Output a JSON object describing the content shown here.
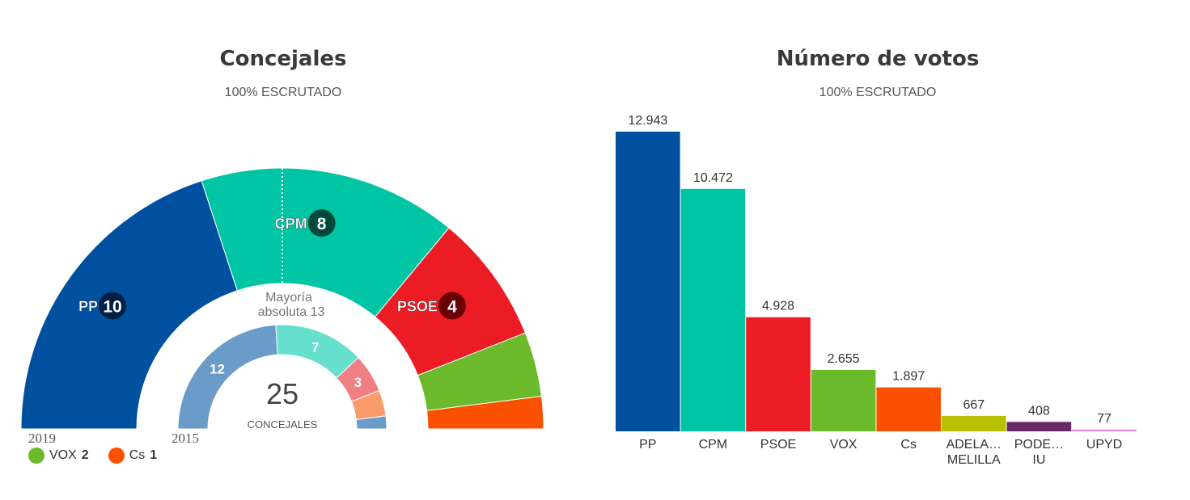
{
  "concejales_panel": {
    "title": "Concejales",
    "subtitle": "100% ESCRUTADO",
    "majority_label_line1": "Mayoría",
    "majority_label_line2": "absoluta 13",
    "total": "25",
    "total_label": "CONCEJALES",
    "year_outer": "2019",
    "year_inner": "2015"
  },
  "votos_panel": {
    "title": "Número de votos",
    "subtitle": "100% ESCRUTADO"
  },
  "legend": [
    {
      "party": "VOX",
      "seats": "2",
      "color": "#6aba2c"
    },
    {
      "party": "Cs",
      "seats": "1",
      "color": "#fa5000"
    }
  ],
  "chart_data": [
    {
      "type": "pie",
      "title": "Concejales",
      "subtitle": "100% ESCRUTADO",
      "variant": "semicircle",
      "series": [
        {
          "name": "2019",
          "slices": [
            {
              "label": "PP",
              "value": 10,
              "color": "#0050a0"
            },
            {
              "label": "CPM",
              "value": 8,
              "color": "#00c5a5"
            },
            {
              "label": "PSOE",
              "value": 4,
              "color": "#eb1c24"
            },
            {
              "label": "VOX",
              "value": 2,
              "color": "#6aba2c"
            },
            {
              "label": "Cs",
              "value": 1,
              "color": "#fa5000"
            }
          ]
        },
        {
          "name": "2015",
          "slices": [
            {
              "label": "",
              "value": 12,
              "color": "#6b9bc9"
            },
            {
              "label": "",
              "value": 7,
              "color": "#66dfcc"
            },
            {
              "label": "",
              "value": 3,
              "color": "#f07f84"
            },
            {
              "label": "",
              "value": 2,
              "color": "#fb9a6a"
            },
            {
              "label": "",
              "value": 1,
              "color": "#6b9bc9"
            }
          ]
        }
      ],
      "majority": 13,
      "total": 25
    },
    {
      "type": "bar",
      "title": "Número de votos",
      "subtitle": "100% ESCRUTADO",
      "categories": [
        "PP",
        "CPM",
        "PSOE",
        "VOX",
        "Cs",
        "ADELA… MELILLA",
        "PODE… IU",
        "UPYD"
      ],
      "category_lines": [
        [
          "PP"
        ],
        [
          "CPM"
        ],
        [
          "PSOE"
        ],
        [
          "VOX"
        ],
        [
          "Cs"
        ],
        [
          "ADELA…",
          "MELILLA"
        ],
        [
          "PODE…",
          "IU"
        ],
        [
          "UPYD"
        ]
      ],
      "values": [
        12943,
        10472,
        4928,
        2655,
        1897,
        667,
        408,
        77
      ],
      "value_labels": [
        "12.943",
        "10.472",
        "4.928",
        "2.655",
        "1.897",
        "667",
        "408",
        "77"
      ],
      "colors": [
        "#0050a0",
        "#00c5a5",
        "#eb1c24",
        "#6aba2c",
        "#fa5000",
        "#b8c000",
        "#6a2a6a",
        "#e88bd0"
      ],
      "xlabel": "",
      "ylabel": "",
      "grid": false
    }
  ]
}
